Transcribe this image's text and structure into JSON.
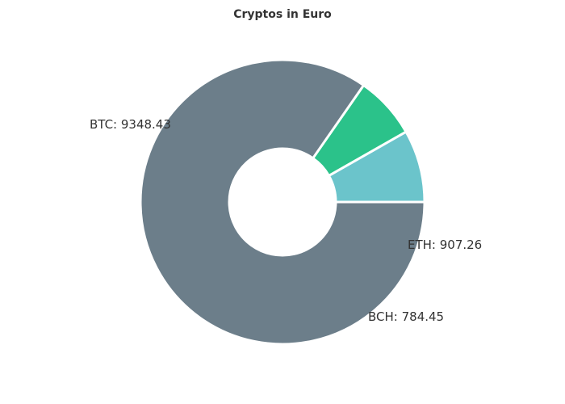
{
  "chart_data": {
    "type": "pie",
    "variant": "donut",
    "title": "Cryptos in Euro",
    "slices": [
      {
        "name": "ETH",
        "value": 907.26,
        "color": "#6bc4cb"
      },
      {
        "name": "BCH",
        "value": 784.45,
        "color": "#2bc28a"
      },
      {
        "name": "BTC",
        "value": 9348.43,
        "color": "#6c7e8a"
      }
    ],
    "labels": [
      "ETH: 907.26",
      "BCH: 784.45",
      "BTC: 9348.43"
    ],
    "separator_color": "#ffffff",
    "legend": "none"
  }
}
